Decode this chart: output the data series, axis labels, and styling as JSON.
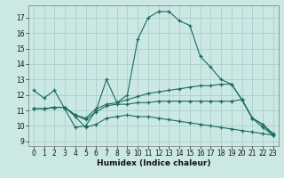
{
  "xlabel": "Humidex (Indice chaleur)",
  "background_color": "#cce8e4",
  "grid_color": "#aacfca",
  "line_color": "#1a6b5e",
  "xlim": [
    -0.5,
    23.5
  ],
  "ylim": [
    8.7,
    17.8
  ],
  "yticks": [
    9,
    10,
    11,
    12,
    13,
    14,
    15,
    16,
    17
  ],
  "xticks": [
    0,
    1,
    2,
    3,
    4,
    5,
    6,
    7,
    8,
    9,
    10,
    11,
    12,
    13,
    14,
    15,
    16,
    17,
    18,
    19,
    20,
    21,
    22,
    23
  ],
  "line1_x": [
    0,
    1,
    2,
    3,
    4,
    5,
    6,
    7,
    8,
    9,
    10,
    11,
    12,
    13,
    14,
    15,
    16,
    17,
    18,
    19,
    20,
    21,
    22,
    23
  ],
  "line1_y": [
    12.3,
    11.8,
    12.3,
    11.1,
    9.9,
    10.0,
    11.0,
    13.0,
    11.5,
    12.0,
    15.6,
    17.0,
    17.4,
    17.4,
    16.8,
    16.5,
    14.5,
    13.8,
    13.0,
    12.7,
    11.7,
    10.5,
    10.1,
    9.4
  ],
  "line2_x": [
    0,
    1,
    2,
    3,
    4,
    5,
    6,
    7,
    8,
    9,
    10,
    11,
    12,
    13,
    14,
    15,
    16,
    17,
    18,
    19,
    20,
    21,
    22,
    23
  ],
  "line2_y": [
    11.1,
    11.1,
    11.2,
    11.2,
    10.7,
    10.5,
    11.1,
    11.4,
    11.5,
    11.7,
    11.9,
    12.1,
    12.2,
    12.3,
    12.4,
    12.5,
    12.6,
    12.6,
    12.7,
    12.7,
    11.7,
    10.5,
    10.1,
    9.5
  ],
  "line3_x": [
    0,
    1,
    2,
    3,
    4,
    5,
    6,
    7,
    8,
    9,
    10,
    11,
    12,
    13,
    14,
    15,
    16,
    17,
    18,
    19,
    20,
    21,
    22,
    23
  ],
  "line3_y": [
    11.1,
    11.1,
    11.2,
    11.2,
    10.7,
    10.4,
    10.9,
    11.3,
    11.4,
    11.4,
    11.5,
    11.5,
    11.6,
    11.6,
    11.6,
    11.6,
    11.6,
    11.6,
    11.6,
    11.6,
    11.7,
    10.5,
    9.9,
    9.4
  ],
  "line4_x": [
    0,
    1,
    2,
    3,
    4,
    5,
    6,
    7,
    8,
    9,
    10,
    11,
    12,
    13,
    14,
    15,
    16,
    17,
    18,
    19,
    20,
    21,
    22,
    23
  ],
  "line4_y": [
    11.1,
    11.1,
    11.2,
    11.2,
    10.6,
    9.9,
    10.1,
    10.5,
    10.6,
    10.7,
    10.6,
    10.6,
    10.5,
    10.4,
    10.3,
    10.2,
    10.1,
    10.0,
    9.9,
    9.8,
    9.7,
    9.6,
    9.5,
    9.4
  ]
}
